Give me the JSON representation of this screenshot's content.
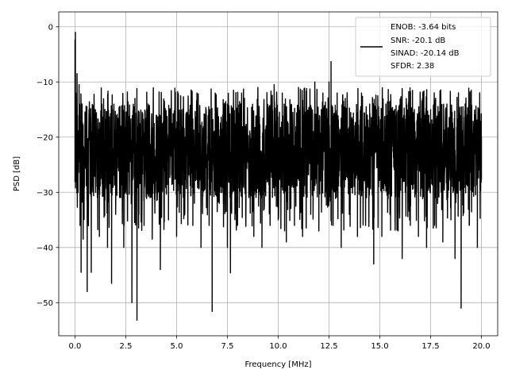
{
  "chart_data": {
    "type": "line",
    "title": "",
    "xlabel": "Frequency [MHz]",
    "ylabel": "PSD [dB]",
    "xlim": [
      -0.8,
      20.8
    ],
    "ylim": [
      -56,
      2.7
    ],
    "xticks": [
      0.0,
      2.5,
      5.0,
      7.5,
      10.0,
      12.5,
      15.0,
      17.5,
      20.0
    ],
    "xtick_labels": [
      "0.0",
      "2.5",
      "5.0",
      "7.5",
      "10.0",
      "12.5",
      "15.0",
      "17.5",
      "20.0"
    ],
    "yticks": [
      0,
      -10,
      -20,
      -30,
      -40,
      -50
    ],
    "ytick_labels": [
      "0",
      "−10",
      "−20",
      "−30",
      "−40",
      "−50"
    ],
    "grid": true,
    "legend": {
      "placement": "top-right",
      "entries": [
        "ENOB: -3.64 bits",
        "SNR: -20.1 dB",
        "SINAD: -20.14 dB",
        "SFDR: 2.38"
      ]
    },
    "series": [
      {
        "color": "#000000",
        "points": [
          [
            0.0,
            -2.4
          ],
          [
            0.02,
            -1.0
          ],
          [
            0.04,
            -12.0
          ],
          [
            0.06,
            -28.0
          ],
          [
            0.1,
            -8.5
          ],
          [
            0.15,
            -30.0
          ],
          [
            0.2,
            -10.5
          ],
          [
            0.25,
            -36.0
          ],
          [
            0.3,
            -44.5
          ],
          [
            0.35,
            -14.0
          ],
          [
            0.4,
            -38.5
          ],
          [
            0.5,
            -22.0
          ],
          [
            0.6,
            -48.0
          ],
          [
            0.7,
            -16.0
          ],
          [
            0.8,
            -44.5
          ],
          [
            1.0,
            -15.0
          ],
          [
            1.2,
            -38.0
          ],
          [
            1.4,
            -20.0
          ],
          [
            1.6,
            -40.0
          ],
          [
            1.8,
            -46.5
          ],
          [
            1.9,
            -15.0
          ],
          [
            2.0,
            -34.0
          ],
          [
            2.2,
            -14.5
          ],
          [
            2.4,
            -40.0
          ],
          [
            2.6,
            -22.0
          ],
          [
            2.8,
            -50.0
          ],
          [
            2.95,
            -13.0
          ],
          [
            3.05,
            -53.2
          ],
          [
            3.2,
            -18.0
          ],
          [
            3.4,
            -36.0
          ],
          [
            3.6,
            -14.0
          ],
          [
            3.8,
            -38.5
          ],
          [
            4.0,
            -20.0
          ],
          [
            4.2,
            -44.0
          ],
          [
            4.4,
            -13.5
          ],
          [
            4.6,
            -35.0
          ],
          [
            4.8,
            -22.0
          ],
          [
            5.0,
            -38.0
          ],
          [
            5.2,
            -12.5
          ],
          [
            5.4,
            -34.0
          ],
          [
            5.6,
            -20.0
          ],
          [
            5.8,
            -36.0
          ],
          [
            6.0,
            -12.0
          ],
          [
            6.2,
            -40.0
          ],
          [
            6.4,
            -24.0
          ],
          [
            6.6,
            -36.0
          ],
          [
            6.75,
            -51.6
          ],
          [
            6.9,
            -12.0
          ],
          [
            7.1,
            -32.0
          ],
          [
            7.3,
            -14.0
          ],
          [
            7.5,
            -40.0
          ],
          [
            7.65,
            -44.6
          ],
          [
            7.8,
            -11.5
          ],
          [
            8.0,
            -36.0
          ],
          [
            8.2,
            -12.0
          ],
          [
            8.4,
            -34.0
          ],
          [
            8.6,
            -22.0
          ],
          [
            8.8,
            -38.0
          ],
          [
            9.0,
            -11.0
          ],
          [
            9.2,
            -40.0
          ],
          [
            9.4,
            -18.0
          ],
          [
            9.6,
            -36.0
          ],
          [
            9.8,
            -10.5
          ],
          [
            10.0,
            -35.0
          ],
          [
            10.2,
            -12.0
          ],
          [
            10.4,
            -39.0
          ],
          [
            10.6,
            -20.0
          ],
          [
            10.8,
            -36.0
          ],
          [
            11.0,
            -11.0
          ],
          [
            11.2,
            -38.0
          ],
          [
            11.4,
            -14.0
          ],
          [
            11.6,
            -34.0
          ],
          [
            11.8,
            -10.0
          ],
          [
            12.0,
            -37.0
          ],
          [
            12.2,
            -12.0
          ],
          [
            12.5,
            -10.0
          ],
          [
            12.6,
            -6.3
          ],
          [
            12.7,
            -36.0
          ],
          [
            12.9,
            -12.0
          ],
          [
            13.1,
            -40.0
          ],
          [
            13.3,
            -13.0
          ],
          [
            13.5,
            -34.0
          ],
          [
            13.7,
            -22.0
          ],
          [
            13.9,
            -38.0
          ],
          [
            14.1,
            -12.0
          ],
          [
            14.3,
            -36.0
          ],
          [
            14.5,
            -14.0
          ],
          [
            14.7,
            -43.0
          ],
          [
            14.9,
            -12.5
          ],
          [
            15.1,
            -38.0
          ],
          [
            15.3,
            -14.0
          ],
          [
            15.5,
            -34.0
          ],
          [
            15.7,
            -24.0
          ],
          [
            15.9,
            -37.0
          ],
          [
            16.1,
            -42.0
          ],
          [
            16.3,
            -13.0
          ],
          [
            16.5,
            -36.0
          ],
          [
            16.7,
            -15.0
          ],
          [
            16.9,
            -38.0
          ],
          [
            17.1,
            -13.0
          ],
          [
            17.3,
            -40.0
          ],
          [
            17.5,
            -15.0
          ],
          [
            17.7,
            -36.0
          ],
          [
            17.9,
            -16.0
          ],
          [
            18.1,
            -39.0
          ],
          [
            18.3,
            -14.0
          ],
          [
            18.5,
            -35.0
          ],
          [
            18.7,
            -42.0
          ],
          [
            18.9,
            -16.0
          ],
          [
            19.0,
            -51.0
          ],
          [
            19.2,
            -14.0
          ],
          [
            19.4,
            -36.0
          ],
          [
            19.6,
            -18.0
          ],
          [
            19.8,
            -40.0
          ],
          [
            20.0,
            -20.0
          ]
        ]
      }
    ],
    "noise_band": {
      "upper": -14.0,
      "lower": -31.0
    }
  }
}
